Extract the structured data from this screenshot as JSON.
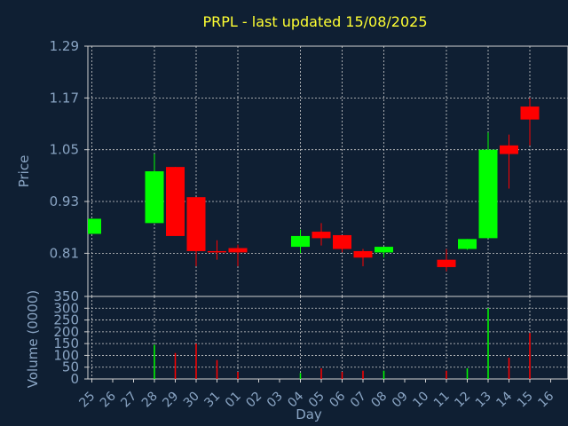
{
  "chart_data": {
    "type": "candlestick",
    "title": "PRPL - last updated 15/08/2025",
    "xlabel": "Day",
    "ylabel_price": "Price",
    "ylabel_volume": "Volume (0000)",
    "price_ticks": [
      "1.29",
      "1.17",
      "1.05",
      "0.93",
      "0.81"
    ],
    "price_tick_values": [
      1.29,
      1.17,
      1.05,
      0.93,
      0.81
    ],
    "price_ylim": [
      0.71,
      1.29
    ],
    "volume_ticks": [
      "350",
      "300",
      "250",
      "200",
      "150",
      "100",
      "50",
      "0"
    ],
    "volume_tick_values": [
      350,
      300,
      250,
      200,
      150,
      100,
      50,
      0
    ],
    "volume_ylim": [
      0,
      350
    ],
    "grid": true,
    "colors": {
      "up": "#00ff00",
      "down": "#ff0000",
      "grid": "#d0d0d0",
      "background": "#0f1f33",
      "title": "#ffff33",
      "axis_text": "#8aa5c4"
    },
    "days": [
      "25",
      "26",
      "27",
      "28",
      "29",
      "30",
      "31",
      "01",
      "02",
      "03",
      "04",
      "05",
      "06",
      "07",
      "08",
      "09",
      "10",
      "11",
      "12",
      "13",
      "14",
      "15",
      "16"
    ],
    "candles": [
      {
        "day": "25",
        "open": 0.855,
        "close": 0.89,
        "high": 0.89,
        "low": 0.855,
        "volume": 0
      },
      {
        "day": "28",
        "open": 0.88,
        "close": 1.0,
        "high": 1.04,
        "low": 0.88,
        "volume": 145
      },
      {
        "day": "29",
        "open": 1.01,
        "close": 0.85,
        "high": 1.01,
        "low": 0.85,
        "volume": 110
      },
      {
        "day": "30",
        "open": 0.94,
        "close": 0.815,
        "high": 0.94,
        "low": 0.78,
        "volume": 150
      },
      {
        "day": "31",
        "open": 0.815,
        "close": 0.812,
        "high": 0.84,
        "low": 0.795,
        "volume": 80
      },
      {
        "day": "01",
        "open": 0.822,
        "close": 0.812,
        "high": 0.83,
        "low": 0.78,
        "volume": 30
      },
      {
        "day": "04",
        "open": 0.825,
        "close": 0.85,
        "high": 0.865,
        "low": 0.81,
        "volume": 25
      },
      {
        "day": "05",
        "open": 0.86,
        "close": 0.845,
        "high": 0.88,
        "low": 0.828,
        "volume": 45
      },
      {
        "day": "06",
        "open": 0.852,
        "close": 0.82,
        "high": 0.852,
        "low": 0.812,
        "volume": 30
      },
      {
        "day": "07",
        "open": 0.815,
        "close": 0.8,
        "high": 0.82,
        "low": 0.78,
        "volume": 35
      },
      {
        "day": "08",
        "open": 0.812,
        "close": 0.825,
        "high": 0.825,
        "low": 0.8,
        "volume": 35
      },
      {
        "day": "11",
        "open": 0.795,
        "close": 0.778,
        "high": 0.82,
        "low": 0.768,
        "volume": 35
      },
      {
        "day": "12",
        "open": 0.82,
        "close": 0.843,
        "high": 0.843,
        "low": 0.818,
        "volume": 45
      },
      {
        "day": "13",
        "open": 0.845,
        "close": 1.05,
        "high": 1.09,
        "low": 0.845,
        "volume": 300
      },
      {
        "day": "14",
        "open": 1.06,
        "close": 1.04,
        "high": 1.085,
        "low": 0.96,
        "volume": 90
      },
      {
        "day": "15",
        "open": 1.15,
        "close": 1.12,
        "high": 1.17,
        "low": 1.06,
        "volume": 195
      }
    ]
  }
}
